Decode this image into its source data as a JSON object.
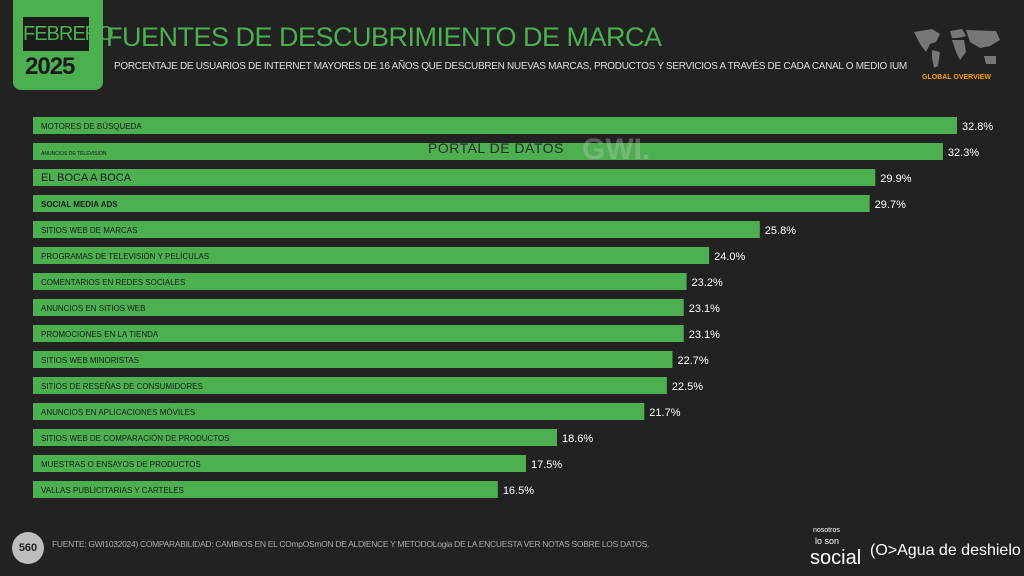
{
  "header": {
    "month": "FEBRERO",
    "year": "2025",
    "title": "FUENTES DE DESCUBRIMIENTO DE MARCA",
    "subtitle": "PORCENTAJE DE USUARIOS DE INTERNET MAYORES DE 16 AÑOS QUE DESCUBREN NUEVAS MARCAS, PRODUCTOS Y SERVICIOS A TRAVÉS DE CADA CANAL O MEDIO IUM",
    "badge": "GLOBAL OVERVIEW"
  },
  "watermark": {
    "text": "PORTAL DE DATOS",
    "logo": "GWI."
  },
  "footer": {
    "page": "560",
    "source": "FUENTE: GWI1032024) COMPARABILIDAD: CAMBIOS EN EL COmpOSmON DE ALDIENCE Y METODOLogia DE LA ENCUESTA VER NOTAS SOBRE LOS DATOS.",
    "brand_small": "nosotros",
    "brand_lo": "lo son",
    "brand_social": "social",
    "brand_agua": "(O>Agua de deshielo"
  },
  "colors": {
    "bar": "#4caf50",
    "background": "#222222",
    "accent": "#f5a000"
  },
  "chart_data": {
    "type": "bar",
    "orientation": "horizontal",
    "xlim": [
      0,
      32.8
    ],
    "grid": false,
    "categories": [
      "MOTORES DE BÚSQUEDA",
      "ANUNCIOS DE TELEVISIÓN",
      "EL BOCA A BOCA",
      "SOCIAL MEDIA ADS",
      "SITIOS WEB DE MARCAS",
      "PROGRAMAS DE TELEVISIÓN Y PELÍCULAS",
      "COMENTARIOS EN REDES SOCIALES",
      "ANUNCIOS EN SITIOS WEB",
      "PROMOCIONES EN LA TIENDA",
      "SITIOS WEB MINORISTAS",
      "SITIOS DE RESEÑAS DE CONSUMIDORES",
      "ANUNCIOS EN APLICACIONES MÓVILES",
      "SITIOS WEB DE COMPARACIÓN DE PRODUCTOS",
      "MUESTRAS O ENSAYOS DE PRODUCTOS",
      "VALLAS PUBLICITARIAS Y CARTELES"
    ],
    "values": [
      32.8,
      32.3,
      29.9,
      29.7,
      25.8,
      24.0,
      23.2,
      23.1,
      23.1,
      22.7,
      22.5,
      21.7,
      18.6,
      17.5,
      16.5
    ],
    "value_labels": [
      "32.8%",
      "32.3%",
      "29.9%",
      "29.7%",
      "25.8%",
      "24.0%",
      "23.2%",
      "23.1%",
      "23.1%",
      "22.7%",
      "22.5%",
      "21.7%",
      "18.6%",
      "17.5%",
      "16.5%"
    ]
  }
}
